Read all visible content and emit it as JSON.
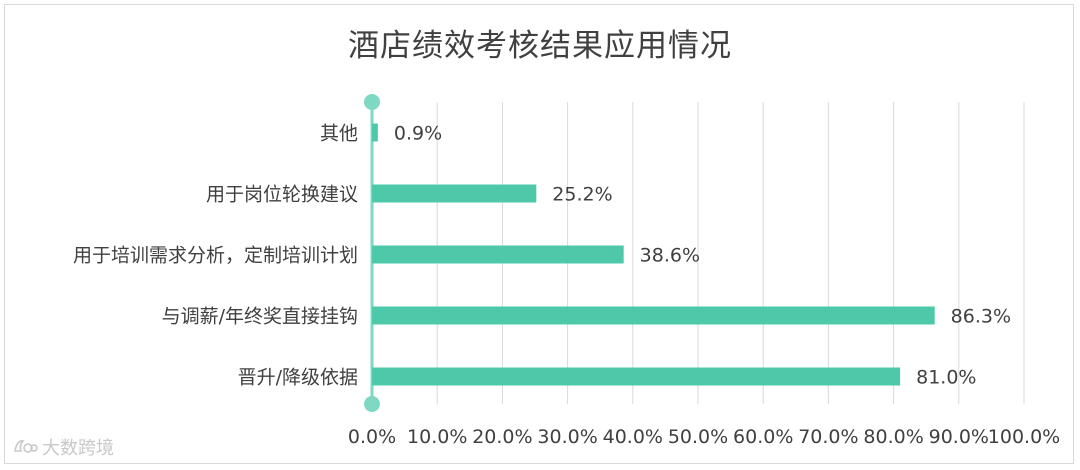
{
  "chart_data": {
    "type": "bar",
    "orientation": "horizontal",
    "title": "酒店绩效考核结果应用情况",
    "categories": [
      "其他",
      "用于岗位轮换建议",
      "用于培训需求分析，定制培训计划",
      "与调薪/年终奖直接挂钩",
      "晋升/降级依据"
    ],
    "values": [
      0.9,
      25.2,
      38.6,
      86.3,
      81.0
    ],
    "data_labels": [
      "0.9%",
      "25.2%",
      "38.6%",
      "86.3%",
      "81.0%"
    ],
    "xlim": [
      0,
      100
    ],
    "x_ticks": [
      "0.0%",
      "10.0%",
      "20.0%",
      "30.0%",
      "40.0%",
      "50.0%",
      "60.0%",
      "70.0%",
      "80.0%",
      "90.0%",
      "100.0%"
    ],
    "grid": true,
    "colors": {
      "bar": "#4dc9a9",
      "axis": "#7fd9c2",
      "grid": "#d9d9d9",
      "text": "#404040"
    }
  },
  "watermark": {
    "text": "大数跨境",
    "icon": "logo-icon"
  }
}
